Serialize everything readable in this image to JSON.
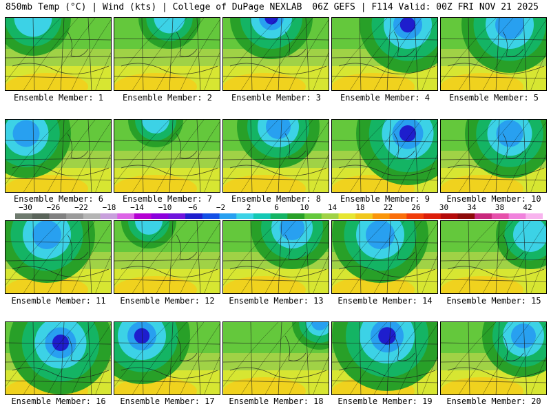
{
  "header": {
    "left": "850mb Temp (°C) | Wind (kts) | College of DuPage NEXLAB",
    "right": "06Z GEFS | F114 Valid: 00Z FRI NOV 21 2025"
  },
  "panels": [
    {
      "label": "Ensemble Member: 1"
    },
    {
      "label": "Ensemble Member: 2"
    },
    {
      "label": "Ensemble Member: 3"
    },
    {
      "label": "Ensemble Member: 4"
    },
    {
      "label": "Ensemble Member: 5"
    },
    {
      "label": "Ensemble Member: 6"
    },
    {
      "label": "Ensemble Member: 7"
    },
    {
      "label": "Ensemble Member: 8"
    },
    {
      "label": "Ensemble Member: 9"
    },
    {
      "label": "Ensemble Member: 10"
    },
    {
      "label": "Ensemble Member: 11"
    },
    {
      "label": "Ensemble Member: 12"
    },
    {
      "label": "Ensemble Member: 13"
    },
    {
      "label": "Ensemble Member: 14"
    },
    {
      "label": "Ensemble Member: 15"
    },
    {
      "label": "Ensemble Member: 16"
    },
    {
      "label": "Ensemble Member: 17"
    },
    {
      "label": "Ensemble Member: 18"
    },
    {
      "label": "Ensemble Member: 19"
    },
    {
      "label": "Ensemble Member: 20"
    }
  ],
  "colorbar": {
    "labels": [
      "−30",
      "−26",
      "−22",
      "−18",
      "−14",
      "−10",
      "−6",
      "−2",
      "2",
      "6",
      "10",
      "14",
      "18",
      "22",
      "26",
      "30",
      "34",
      "38",
      "42"
    ],
    "colors": [
      "#6e7a6e",
      "#5a645a",
      "#808080",
      "#9a9a9a",
      "#b4b4b4",
      "#c8a0dc",
      "#dc64e6",
      "#b400d2",
      "#8c00dc",
      "#6e14dc",
      "#1e1ecd",
      "#1450e6",
      "#28a0f0",
      "#3cd2e6",
      "#14c8b4",
      "#14b464",
      "#28a028",
      "#64c83c",
      "#a0d246",
      "#e6e632",
      "#f0c81e",
      "#fa960a",
      "#fa6e0a",
      "#f03c0a",
      "#dc1e0a",
      "#b40a0a",
      "#8c0a0a",
      "#c8287c",
      "#e650aa",
      "#f082dc",
      "#f8b4ee"
    ]
  }
}
